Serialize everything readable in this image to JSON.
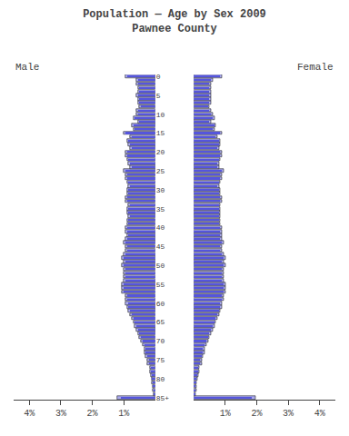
{
  "chart_data": {
    "type": "bar",
    "orientation": "horizontal",
    "title": "Population — Age by Sex 2009",
    "subtitle": "Pawnee County",
    "categories": [
      "85+",
      null,
      null,
      null,
      null,
      "80",
      null,
      null,
      null,
      null,
      "75",
      null,
      null,
      null,
      null,
      "70",
      null,
      null,
      null,
      null,
      "65",
      null,
      null,
      null,
      null,
      "60",
      null,
      null,
      null,
      null,
      "55",
      null,
      null,
      null,
      null,
      "50",
      null,
      null,
      null,
      null,
      "45",
      null,
      null,
      null,
      null,
      "40",
      null,
      null,
      null,
      null,
      "35",
      null,
      null,
      null,
      null,
      "30",
      null,
      null,
      null,
      null,
      "25",
      null,
      null,
      null,
      null,
      "20",
      null,
      null,
      null,
      null,
      "15",
      null,
      null,
      null,
      null,
      "10",
      null,
      null,
      null,
      null,
      "5",
      null,
      null,
      null,
      null,
      "0"
    ],
    "xlim": [
      0,
      4.5
    ],
    "xticks": [
      {
        "value": 1,
        "label": "1%"
      },
      {
        "value": 2,
        "label": "2%"
      },
      {
        "value": 3,
        "label": "3%"
      },
      {
        "value": 4,
        "label": "4%"
      }
    ],
    "grid": false,
    "series": [
      {
        "name": "Male",
        "color": "#aaaaee",
        "values": [
          1.2,
          0.06,
          0.08,
          0.09,
          0.1,
          0.12,
          0.15,
          0.18,
          0.18,
          0.25,
          0.25,
          0.3,
          0.35,
          0.35,
          0.4,
          0.45,
          0.5,
          0.55,
          0.6,
          0.65,
          0.7,
          0.75,
          0.8,
          0.85,
          0.9,
          0.95,
          0.95,
          0.95,
          1.05,
          1.05,
          1.05,
          1.0,
          1.0,
          1.0,
          1.0,
          1.05,
          1.0,
          1.05,
          1.0,
          0.95,
          0.95,
          1.0,
          0.95,
          0.9,
          0.95,
          0.95,
          0.9,
          0.9,
          0.85,
          0.9,
          0.9,
          0.85,
          0.95,
          0.95,
          0.9,
          0.9,
          0.85,
          0.9,
          0.95,
          0.95,
          1.0,
          0.8,
          0.85,
          0.9,
          0.95,
          0.95,
          0.8,
          0.85,
          0.9,
          0.8,
          1.0,
          0.7,
          0.75,
          0.55,
          0.7,
          0.6,
          0.6,
          0.5,
          0.55,
          0.55,
          0.6,
          0.55,
          0.55,
          0.6,
          0.6,
          0.95
        ]
      },
      {
        "name": "Male",
        "color": "#5555dd",
        "values": [
          1.1,
          0.05,
          0.06,
          0.07,
          0.08,
          0.1,
          0.12,
          0.15,
          0.15,
          0.2,
          0.2,
          0.25,
          0.3,
          0.3,
          0.35,
          0.4,
          0.45,
          0.5,
          0.55,
          0.6,
          0.65,
          0.7,
          0.75,
          0.8,
          0.85,
          0.85,
          0.9,
          0.9,
          1.0,
          1.0,
          1.0,
          0.95,
          0.95,
          0.95,
          0.95,
          1.0,
          0.95,
          1.0,
          0.95,
          0.9,
          0.9,
          0.95,
          0.9,
          0.85,
          0.9,
          0.9,
          0.85,
          0.85,
          0.8,
          0.85,
          0.85,
          0.8,
          0.9,
          0.9,
          0.85,
          0.85,
          0.8,
          0.85,
          0.9,
          0.9,
          0.95,
          0.75,
          0.8,
          0.85,
          0.9,
          0.9,
          0.75,
          0.8,
          0.85,
          0.75,
          0.95,
          0.65,
          0.7,
          0.5,
          0.65,
          0.55,
          0.55,
          0.45,
          0.5,
          0.5,
          0.55,
          0.5,
          0.5,
          0.55,
          0.55,
          0.9
        ]
      },
      {
        "name": "Female",
        "color": "#aaaaee",
        "values": [
          1.95,
          0.06,
          0.08,
          0.09,
          0.1,
          0.12,
          0.15,
          0.18,
          0.18,
          0.25,
          0.25,
          0.3,
          0.35,
          0.35,
          0.4,
          0.45,
          0.5,
          0.55,
          0.6,
          0.65,
          0.7,
          0.75,
          0.8,
          0.85,
          0.9,
          0.9,
          0.95,
          0.95,
          1.0,
          1.0,
          1.0,
          0.95,
          0.95,
          0.95,
          0.95,
          1.0,
          0.95,
          1.0,
          0.95,
          0.9,
          0.9,
          0.95,
          0.9,
          0.9,
          0.9,
          0.9,
          0.85,
          0.85,
          0.85,
          0.85,
          0.85,
          0.85,
          0.9,
          0.9,
          0.85,
          0.85,
          0.8,
          0.85,
          0.9,
          0.9,
          0.95,
          0.8,
          0.8,
          0.85,
          0.9,
          0.9,
          0.8,
          0.85,
          0.85,
          0.75,
          0.9,
          0.65,
          0.7,
          0.55,
          0.65,
          0.6,
          0.55,
          0.5,
          0.55,
          0.55,
          0.55,
          0.55,
          0.55,
          0.55,
          0.6,
          0.9
        ]
      },
      {
        "name": "Female",
        "color": "#5555dd",
        "values": [
          1.85,
          0.05,
          0.06,
          0.07,
          0.08,
          0.1,
          0.12,
          0.15,
          0.15,
          0.2,
          0.2,
          0.25,
          0.3,
          0.3,
          0.35,
          0.4,
          0.45,
          0.5,
          0.55,
          0.6,
          0.65,
          0.7,
          0.75,
          0.8,
          0.85,
          0.85,
          0.9,
          0.9,
          0.95,
          0.95,
          0.95,
          0.9,
          0.9,
          0.9,
          0.9,
          0.95,
          0.9,
          0.95,
          0.9,
          0.85,
          0.85,
          0.9,
          0.85,
          0.85,
          0.85,
          0.85,
          0.8,
          0.8,
          0.8,
          0.8,
          0.8,
          0.8,
          0.85,
          0.85,
          0.8,
          0.8,
          0.75,
          0.8,
          0.85,
          0.85,
          0.9,
          0.75,
          0.75,
          0.8,
          0.85,
          0.85,
          0.75,
          0.8,
          0.8,
          0.7,
          0.85,
          0.6,
          0.65,
          0.5,
          0.6,
          0.55,
          0.5,
          0.45,
          0.5,
          0.5,
          0.5,
          0.5,
          0.5,
          0.5,
          0.55,
          0.85
        ]
      }
    ]
  }
}
